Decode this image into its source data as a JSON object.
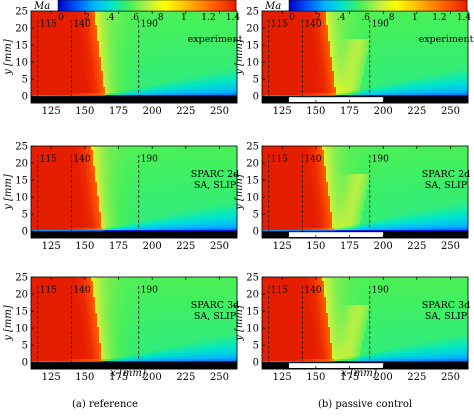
{
  "chart_data": {
    "type": "heatmap",
    "colorbar": {
      "label": "Ma",
      "ticks": [
        "0",
        ".2",
        ".4",
        ".6",
        ".8",
        "1",
        "1.2",
        "1.4"
      ],
      "range": [
        0,
        1.4
      ],
      "colormap": [
        "#0000c8",
        "#0050ff",
        "#00b4ff",
        "#00e6c8",
        "#46f05a",
        "#b4f046",
        "#ffff00",
        "#ffc800",
        "#ff8c00",
        "#ff5000",
        "#e61e00"
      ]
    },
    "axes": {
      "xlabel": "x [mm]",
      "ylabel": "y [mm]",
      "xticks": [
        125,
        150,
        175,
        200,
        225,
        250
      ],
      "yticks": [
        0,
        5,
        10,
        15,
        20,
        25
      ],
      "xlim": [
        110,
        263
      ],
      "ylim": [
        -2,
        25
      ]
    },
    "dashed_lines": [
      {
        "x": 115,
        "label": "115"
      },
      {
        "x": 140,
        "label": "140"
      },
      {
        "x": 190,
        "label": "190"
      }
    ],
    "columns": [
      {
        "caption": "(a) reference",
        "control_strip": null
      },
      {
        "caption": "(b) passive control",
        "control_strip": [
          130,
          200
        ]
      }
    ],
    "rows": [
      {
        "label_lines": [
          "experiment"
        ]
      },
      {
        "label_lines": [
          "SPARC 2d",
          "SA, SLIP"
        ]
      },
      {
        "label_lines": [
          "SPARC 3d",
          "SA, SLIP"
        ]
      }
    ]
  }
}
